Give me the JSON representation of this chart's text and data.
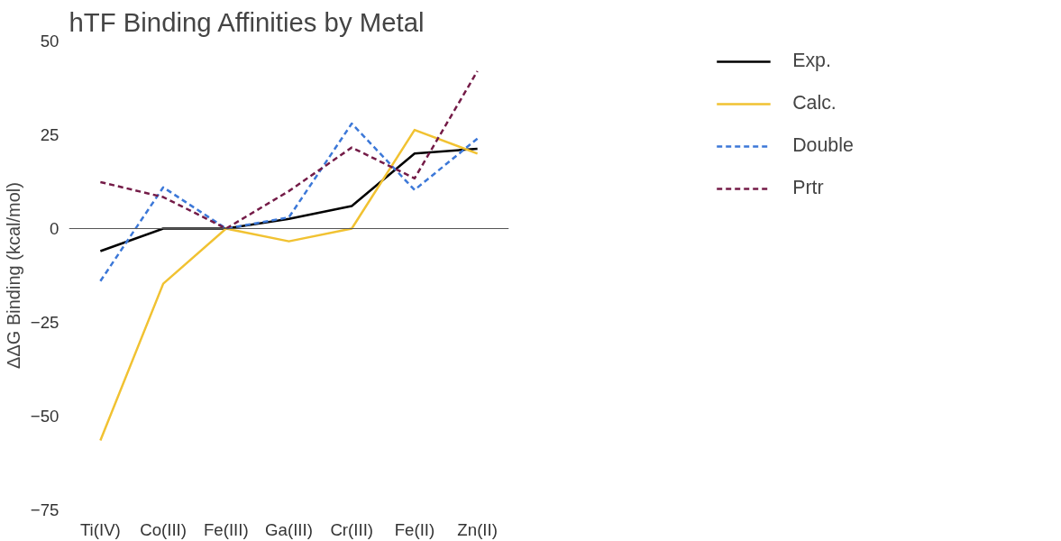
{
  "chart_data": {
    "type": "line",
    "title": "hTF Binding Affinities by Metal",
    "ylabel": "ΔΔG Binding (kcal/mol)",
    "categories": [
      "Ti(IV)",
      "Co(III)",
      "Fe(III)",
      "Ga(III)",
      "Cr(III)",
      "Fe(II)",
      "Zn(II)"
    ],
    "series": [
      {
        "name": "Exp.",
        "color": "#000000",
        "line_style": "solid",
        "values": [
          -6,
          0,
          0,
          2.6,
          6,
          20,
          21.3
        ]
      },
      {
        "name": "Calc.",
        "color": "#f1c232",
        "line_style": "solid",
        "values": [
          -56.5,
          -14.7,
          0,
          -3.4,
          0,
          26.3,
          20
        ]
      },
      {
        "name": "Double",
        "color": "#3c78d8",
        "line_style": "dashed",
        "values": [
          -14,
          11,
          0,
          3,
          28,
          10.3,
          24
        ]
      },
      {
        "name": "Prtr",
        "color": "#741b47",
        "line_style": "dashed",
        "values": [
          12.4,
          8.4,
          0,
          10,
          21.6,
          13.4,
          42
        ]
      }
    ],
    "ylim": [
      -75,
      50
    ],
    "yticks": [
      -75,
      -50,
      -25,
      0,
      25,
      50
    ],
    "grid": false,
    "legend": "top right",
    "marker": "none",
    "ref_lines": [
      {
        "axis": "y",
        "value": 0,
        "color": "#555555"
      }
    ]
  }
}
